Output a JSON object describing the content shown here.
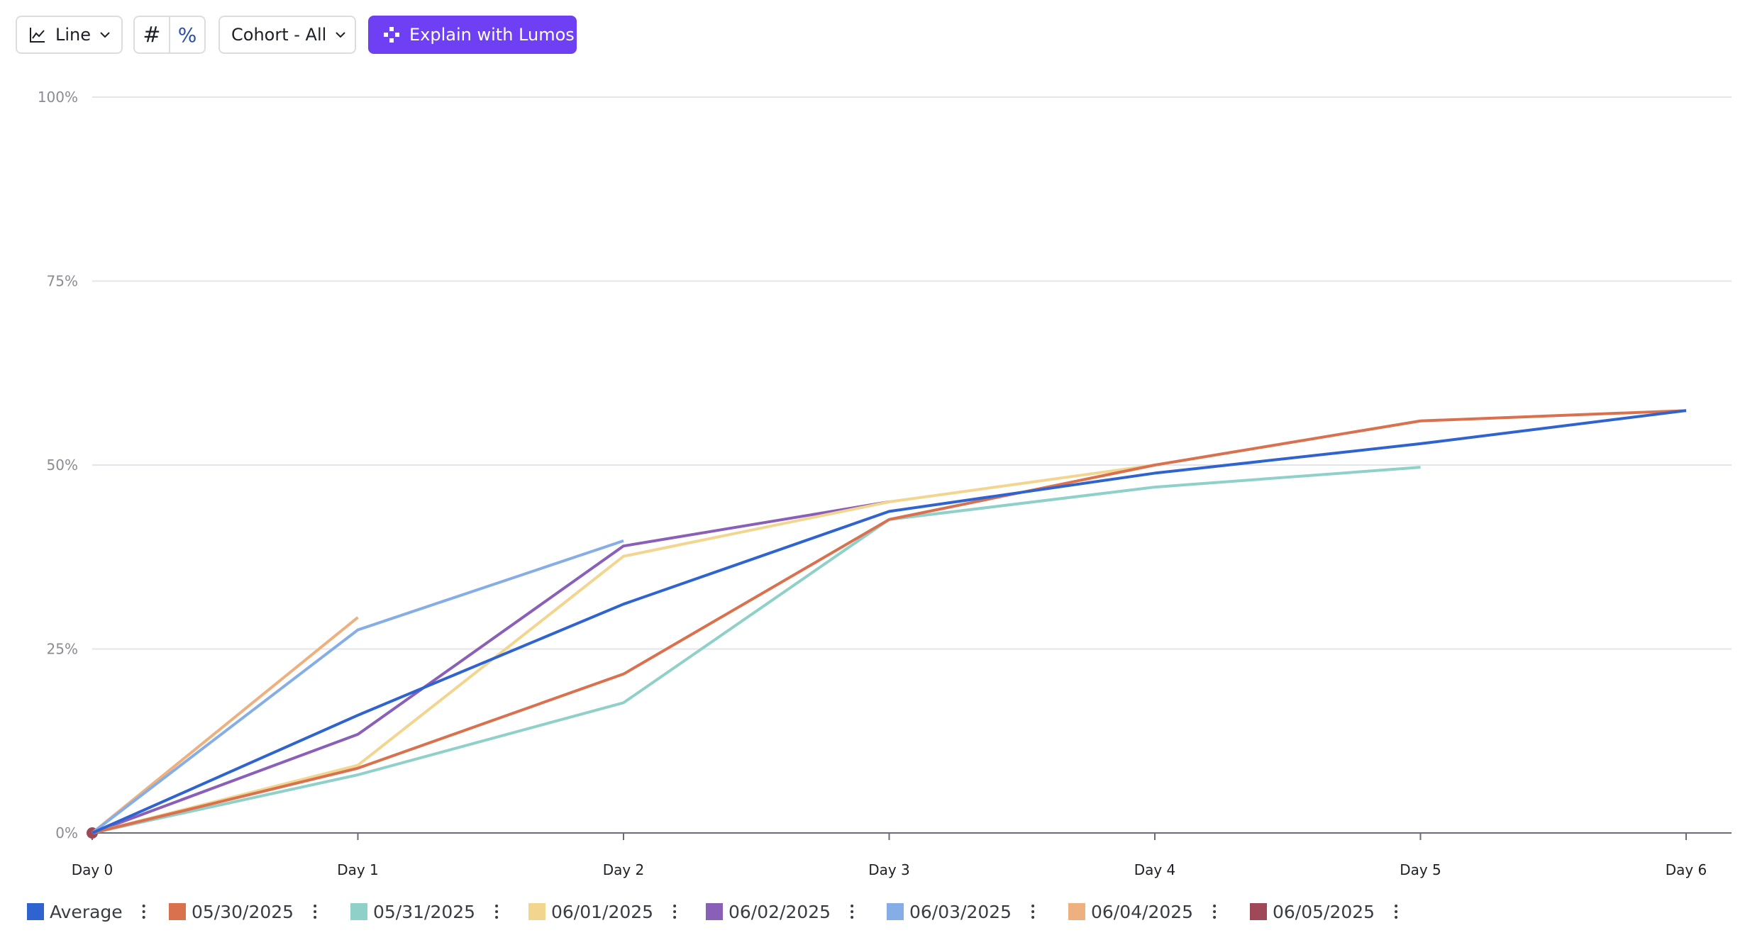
{
  "toolbar": {
    "chart_type": "Line",
    "count": "#",
    "percent": "%",
    "cohort": "Cohort - All",
    "explain": "Explain with Lumos"
  },
  "chart_data": {
    "type": "line",
    "categories": [
      "Day 0",
      "Day 1",
      "Day 2",
      "Day 3",
      "Day 4",
      "Day 5",
      "Day 6"
    ],
    "ylim": [
      0,
      100
    ],
    "yticks": [
      {
        "value": 0,
        "label": "0%"
      },
      {
        "value": 25,
        "label": "25%"
      },
      {
        "value": 50,
        "label": "50%"
      },
      {
        "value": 75,
        "label": "75%"
      },
      {
        "value": 100,
        "label": "100%"
      }
    ],
    "grid": true,
    "legend": "bottom",
    "series": [
      {
        "name": "Average",
        "color": "#2f63d0",
        "values": [
          0,
          16.0,
          31.1,
          43.7,
          48.9,
          52.9,
          57.4
        ]
      },
      {
        "name": "05/30/2025",
        "color": "#d9714f",
        "values": [
          0,
          8.8,
          21.6,
          42.6,
          50.0,
          56.0,
          57.4
        ]
      },
      {
        "name": "05/31/2025",
        "color": "#8fd0c8",
        "values": [
          0,
          7.9,
          17.7,
          42.6,
          47.0,
          49.7,
          null
        ]
      },
      {
        "name": "06/01/2025",
        "color": "#f2d58e",
        "values": [
          0,
          9.2,
          37.6,
          45.0,
          50.0,
          null,
          null
        ]
      },
      {
        "name": "06/02/2025",
        "color": "#8a5fb8",
        "values": [
          0,
          13.4,
          39.0,
          45.0,
          null,
          null,
          null
        ]
      },
      {
        "name": "06/03/2025",
        "color": "#86aee6",
        "values": [
          0,
          27.6,
          39.7,
          null,
          null,
          null,
          null
        ]
      },
      {
        "name": "06/04/2025",
        "color": "#eeb07f",
        "values": [
          0,
          29.3,
          null,
          null,
          null,
          null,
          null
        ]
      },
      {
        "name": "06/05/2025",
        "color": "#9e4858",
        "values": [
          0,
          null,
          null,
          null,
          null,
          null,
          null
        ]
      }
    ]
  }
}
